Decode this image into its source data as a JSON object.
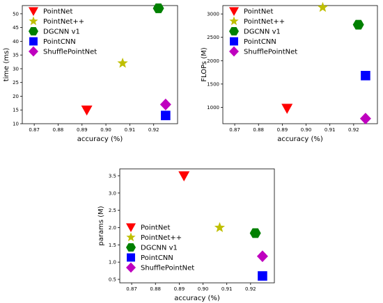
{
  "colors": {
    "PointNet": "#ff0000",
    "PointNet++": "#bfbf00",
    "DGCNN v1": "#008000",
    "PointCNN": "#0000ff",
    "ShufflePointNet": "#bf00bf"
  },
  "chart_data": [
    {
      "type": "scatter",
      "xlabel": "accuracy (%)",
      "ylabel": "time (ms)",
      "xlim": [
        0.865,
        0.93
      ],
      "ylim": [
        10,
        53
      ],
      "xticks": [
        0.87,
        0.88,
        0.89,
        0.9,
        0.91,
        0.92
      ],
      "yticks": [
        10,
        15,
        20,
        25,
        30,
        35,
        40,
        45,
        50
      ],
      "legend_position": "upper-left",
      "series": [
        {
          "name": "PointNet",
          "marker": "triangle-down",
          "x": [
            0.892
          ],
          "y": [
            15
          ]
        },
        {
          "name": "PointNet++",
          "marker": "star",
          "x": [
            0.907
          ],
          "y": [
            32
          ]
        },
        {
          "name": "DGCNN v1",
          "marker": "hexagon",
          "x": [
            0.922
          ],
          "y": [
            52
          ]
        },
        {
          "name": "PointCNN",
          "marker": "square",
          "x": [
            0.925
          ],
          "y": [
            13
          ]
        },
        {
          "name": "ShufflePointNet",
          "marker": "diamond",
          "x": [
            0.925
          ],
          "y": [
            17
          ]
        }
      ]
    },
    {
      "type": "scatter",
      "xlabel": "accuracy (%)",
      "ylabel": "FLOPs (M)",
      "xlim": [
        0.865,
        0.93
      ],
      "ylim": [
        650,
        3180
      ],
      "xticks": [
        0.87,
        0.88,
        0.89,
        0.9,
        0.91,
        0.92
      ],
      "yticks": [
        1000,
        1500,
        2000,
        2500,
        3000
      ],
      "legend_position": "upper-left",
      "series": [
        {
          "name": "PointNet",
          "marker": "triangle-down",
          "x": [
            0.892
          ],
          "y": [
            980
          ]
        },
        {
          "name": "PointNet++",
          "marker": "star",
          "x": [
            0.907
          ],
          "y": [
            3140
          ]
        },
        {
          "name": "DGCNN v1",
          "marker": "hexagon",
          "x": [
            0.922
          ],
          "y": [
            2770
          ]
        },
        {
          "name": "PointCNN",
          "marker": "square",
          "x": [
            0.925
          ],
          "y": [
            1680
          ]
        },
        {
          "name": "ShufflePointNet",
          "marker": "diamond",
          "x": [
            0.925
          ],
          "y": [
            760
          ]
        }
      ]
    },
    {
      "type": "scatter",
      "xlabel": "accuracy (%)",
      "ylabel": "params (M)",
      "xlim": [
        0.865,
        0.93
      ],
      "ylim": [
        0.4,
        3.7
      ],
      "xticks": [
        0.87,
        0.88,
        0.89,
        0.9,
        0.91,
        0.92
      ],
      "yticks": [
        0.5,
        1.0,
        1.5,
        2.0,
        2.5,
        3.0,
        3.5
      ],
      "legend_position": "lower-left",
      "series": [
        {
          "name": "PointNet",
          "marker": "triangle-down",
          "x": [
            0.892
          ],
          "y": [
            3.5
          ]
        },
        {
          "name": "PointNet++",
          "marker": "star",
          "x": [
            0.907
          ],
          "y": [
            2.0
          ]
        },
        {
          "name": "DGCNN v1",
          "marker": "hexagon",
          "x": [
            0.922
          ],
          "y": [
            1.84
          ]
        },
        {
          "name": "PointCNN",
          "marker": "square",
          "x": [
            0.925
          ],
          "y": [
            0.6
          ]
        },
        {
          "name": "ShufflePointNet",
          "marker": "diamond",
          "x": [
            0.925
          ],
          "y": [
            1.17
          ]
        }
      ]
    }
  ]
}
